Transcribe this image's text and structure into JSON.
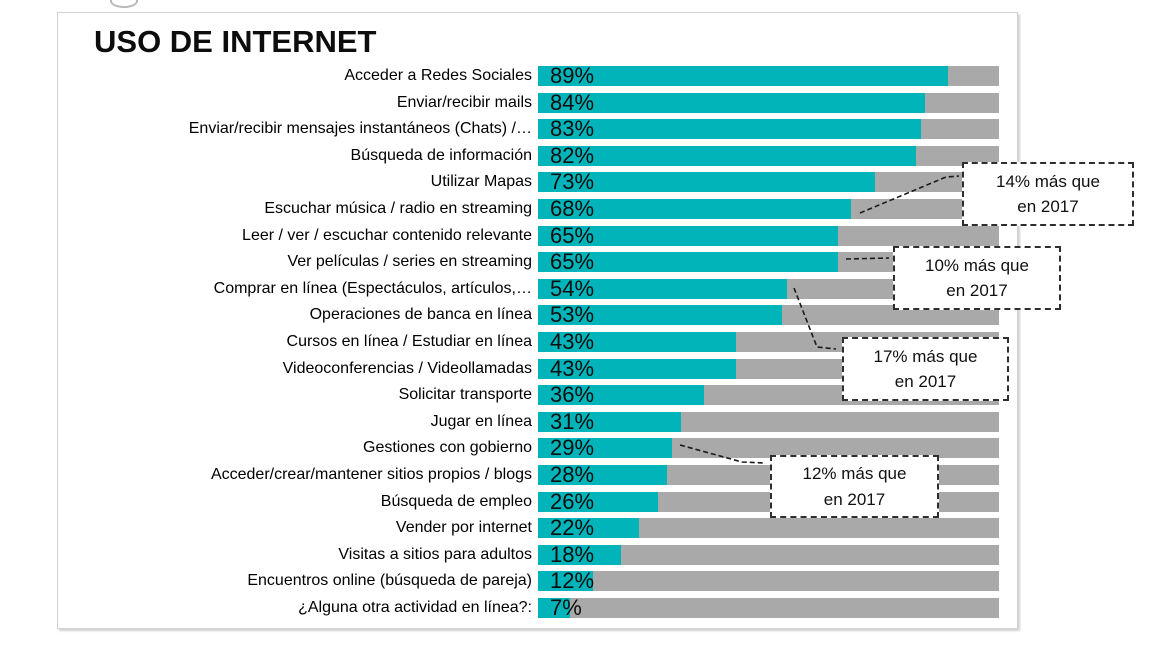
{
  "page": {
    "title": "USO DE INTERNET"
  },
  "chart_data": {
    "type": "bar",
    "orientation": "horizontal",
    "title": "USO DE INTERNET",
    "categories": [
      "Acceder a Redes Sociales",
      "Enviar/recibir mails",
      "Enviar/recibir mensajes instantáneos (Chats) /…",
      "Búsqueda de información",
      "Utilizar Mapas",
      "Escuchar música / radio en streaming",
      "Leer / ver / escuchar contenido relevante",
      "Ver películas / series en streaming",
      "Comprar en línea (Espectáculos, artículos,…",
      "Operaciones de banca en línea",
      "Cursos en línea / Estudiar en línea",
      "Videoconferencias / Videollamadas",
      "Solicitar transporte",
      "Jugar en línea",
      "Gestiones con gobierno",
      "Acceder/crear/mantener sitios propios / blogs",
      "Búsqueda de empleo",
      "Vender por internet",
      "Visitas a sitios para adultos",
      "Encuentros online (búsqueda de pareja)",
      "¿Alguna otra actividad en línea?:"
    ],
    "values": [
      89,
      84,
      83,
      82,
      73,
      68,
      65,
      65,
      54,
      53,
      43,
      43,
      36,
      31,
      29,
      28,
      26,
      22,
      18,
      12,
      7
    ],
    "value_suffix": "%",
    "xlim": [
      0,
      100
    ],
    "bar_color": "#00b4ba",
    "track_color": "#a9a9a9",
    "legend": "none",
    "grid": "off",
    "annotations": [
      {
        "text": "14% más que en 2017",
        "lines": [
          "14% más que",
          "en 2017"
        ],
        "target_category": "Escuchar música / radio en streaming"
      },
      {
        "text": "10% más que en 2017",
        "lines": [
          "10% más que",
          "en 2017"
        ],
        "target_category": "Ver películas / series en streaming"
      },
      {
        "text": "17% más que en 2017",
        "lines": [
          "17% más que",
          "en 2017"
        ],
        "target_category": "Comprar en línea (Espectáculos, artículos,…"
      },
      {
        "text": "12% más que en 2017",
        "lines": [
          "12% más que",
          "en 2017"
        ],
        "target_category": "Gestiones con gobierno"
      }
    ]
  }
}
